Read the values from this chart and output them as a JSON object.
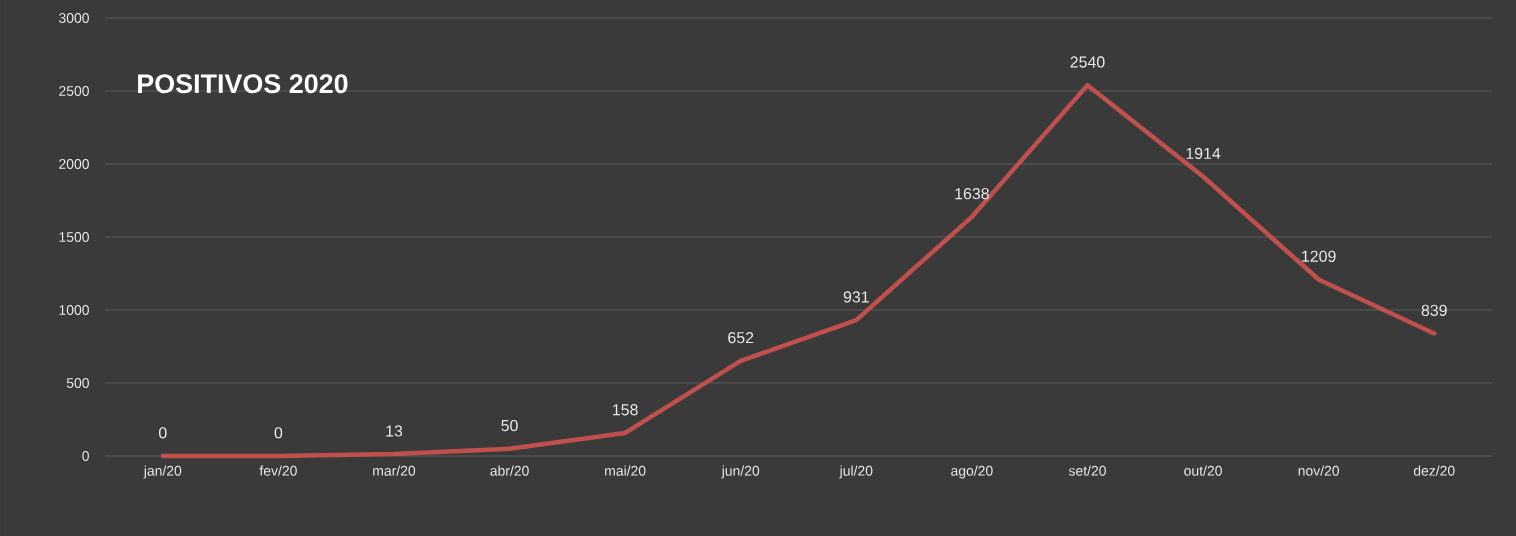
{
  "chart_data": {
    "type": "line",
    "title": "POSITIVOS 2020",
    "categories": [
      "jan/20",
      "fev/20",
      "mar/20",
      "abr/20",
      "mai/20",
      "jun/20",
      "jul/20",
      "ago/20",
      "set/20",
      "out/20",
      "nov/20",
      "dez/20"
    ],
    "values": [
      0,
      0,
      13,
      50,
      158,
      652,
      931,
      1638,
      2540,
      1914,
      1209,
      839
    ],
    "color": "#c0504d",
    "ylim": [
      0,
      3000
    ],
    "yticks": [
      0,
      500,
      1000,
      1500,
      2000,
      2500,
      3000
    ],
    "grid": "y",
    "data_labels": true
  }
}
